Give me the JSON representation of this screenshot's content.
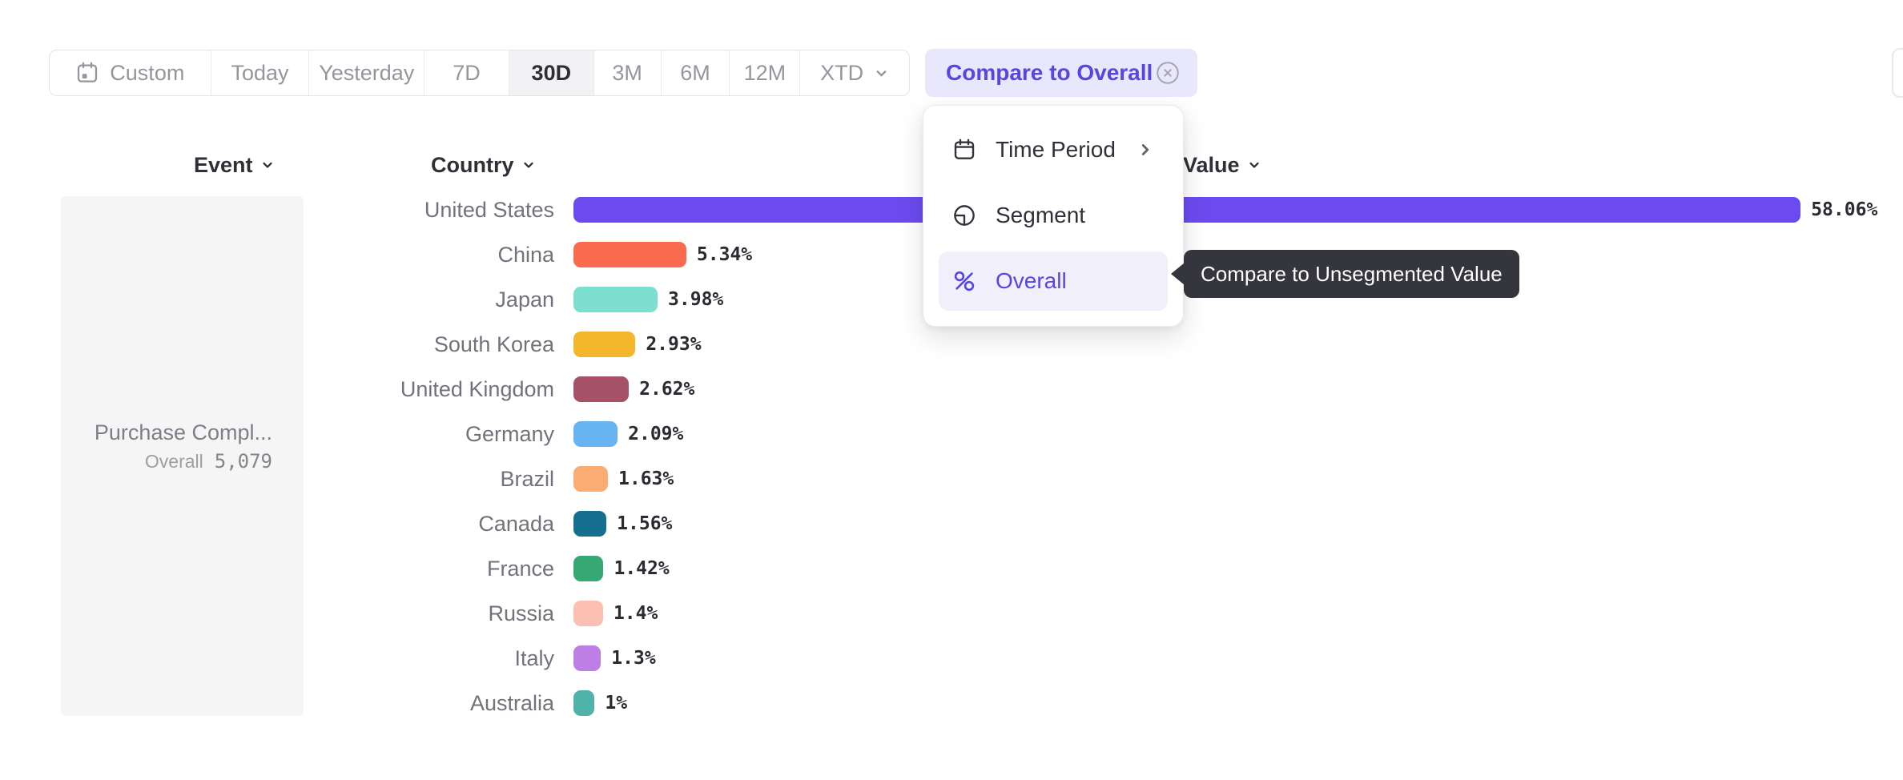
{
  "toolbar": {
    "items": [
      {
        "label": "Custom",
        "icon": "calendar",
        "active": false,
        "chevron": false
      },
      {
        "label": "Today",
        "active": false,
        "chevron": false
      },
      {
        "label": "Yesterday",
        "active": false,
        "chevron": false
      },
      {
        "label": "7D",
        "active": false,
        "chevron": false
      },
      {
        "label": "30D",
        "active": true,
        "chevron": false
      },
      {
        "label": "3M",
        "active": false,
        "chevron": false
      },
      {
        "label": "6M",
        "active": false,
        "chevron": false
      },
      {
        "label": "12M",
        "active": false,
        "chevron": false
      },
      {
        "label": "XTD",
        "active": false,
        "chevron": true
      }
    ],
    "compare_button": {
      "label": "Compare to Overall",
      "icon": "close-circle"
    }
  },
  "compare_menu": {
    "items": [
      {
        "label": "Time Period",
        "icon": "calendar-menu",
        "has_submenu": true,
        "selected": false
      },
      {
        "label": "Segment",
        "icon": "segment",
        "has_submenu": false,
        "selected": false
      },
      {
        "label": "Overall",
        "icon": "percent",
        "has_submenu": false,
        "selected": true
      }
    ]
  },
  "tooltip": {
    "text": "Compare to Unsegmented Value"
  },
  "columns": {
    "event": "Event",
    "segment": "Country",
    "value": "Value"
  },
  "event_panel": {
    "event_name": "Purchase Compl...",
    "overall_label": "Overall",
    "overall_value": "5,079"
  },
  "chart_data": {
    "type": "bar",
    "orientation": "horizontal",
    "title": "",
    "xlabel": "",
    "ylabel": "Country",
    "unit": "%",
    "legend": false,
    "grid": false,
    "axis": "none",
    "value_label_position": "right-of-bar",
    "categories": [
      "United States",
      "China",
      "Japan",
      "South Korea",
      "United Kingdom",
      "Germany",
      "Brazil",
      "Canada",
      "France",
      "Russia",
      "Italy",
      "Australia"
    ],
    "values": [
      58.06,
      5.34,
      3.98,
      2.93,
      2.62,
      2.09,
      1.63,
      1.56,
      1.42,
      1.4,
      1.3,
      1
    ],
    "value_labels": [
      "58.06%",
      "5.34%",
      "3.98%",
      "2.93%",
      "2.62%",
      "2.09%",
      "1.63%",
      "1.56%",
      "1.42%",
      "1.4%",
      "1.3%",
      "1%"
    ],
    "colors": [
      "#6B4BEF",
      "#FA6A4F",
      "#7CDFCF",
      "#F4B62B",
      "#A65168",
      "#68B3F1",
      "#FBAC73",
      "#15708F",
      "#36A873",
      "#FCC0B3",
      "#BD7EE5",
      "#50B3A9"
    ]
  },
  "colors": {
    "accent": "#5646E3",
    "accent_bg": "#E9E7FB",
    "menu_highlight": "#F1EFFC",
    "tooltip_bg": "#35353D",
    "panel_bg": "#F5F5F6",
    "active_range_bg": "#F2F2F4"
  }
}
